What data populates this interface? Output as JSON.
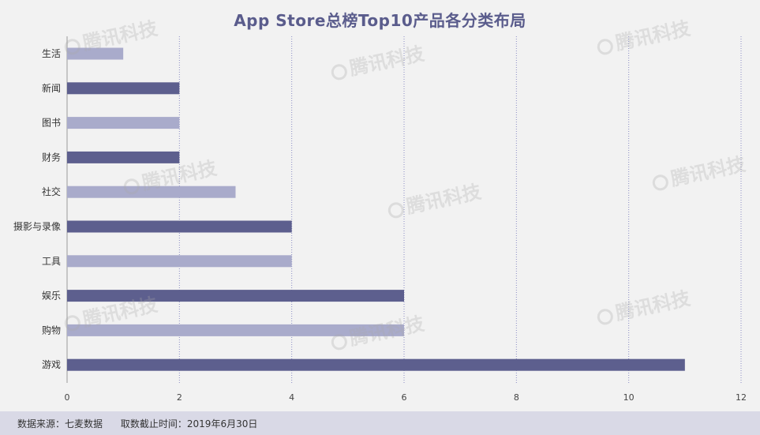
{
  "footer": {
    "source": "数据来源：七麦数据",
    "date": "取数截止时间：2019年6月30日"
  },
  "watermark": "腾讯科技",
  "colors": {
    "dark": "#5d5f8e",
    "light": "#a9abcb",
    "grid": "#8a8cc4",
    "axis": "#999999"
  },
  "chart_data": {
    "type": "bar",
    "orientation": "horizontal",
    "title": "App Store总榜Top10产品各分类布局",
    "categories": [
      "生活",
      "新闻",
      "图书",
      "财务",
      "社交",
      "摄影与录像",
      "工具",
      "娱乐",
      "购物",
      "游戏"
    ],
    "values": [
      1,
      2,
      2,
      2,
      3,
      4,
      4,
      6,
      6,
      11
    ],
    "bar_colors": [
      "#a9abcb",
      "#5d5f8e",
      "#a9abcb",
      "#5d5f8e",
      "#a9abcb",
      "#5d5f8e",
      "#a9abcb",
      "#5d5f8e",
      "#a9abcb",
      "#5d5f8e"
    ],
    "xlim": [
      0,
      12
    ],
    "xticks": [
      0,
      2,
      4,
      6,
      8,
      10,
      12
    ],
    "xlabel": "",
    "ylabel": "",
    "grid": "vertical dotted",
    "legend": "none"
  }
}
